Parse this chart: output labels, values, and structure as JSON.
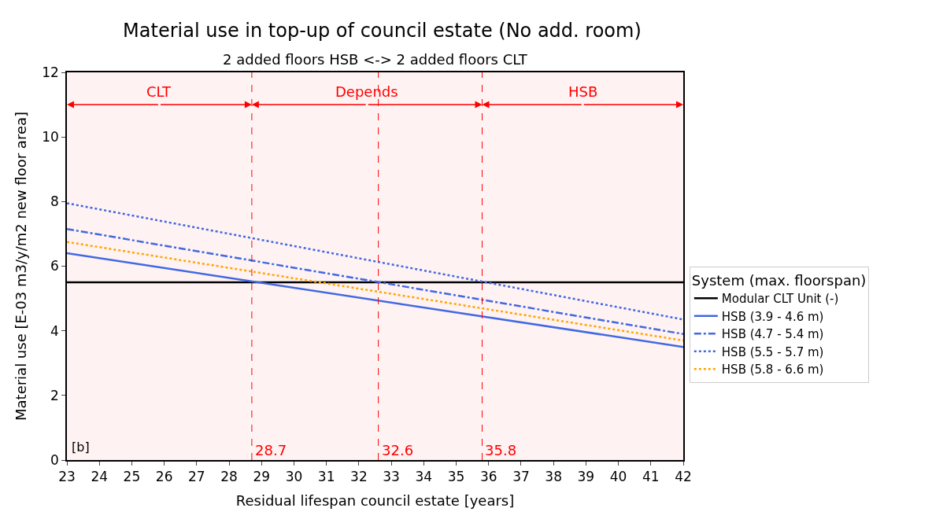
{
  "chart_data": {
    "type": "line",
    "title": "Material use in top-up of council estate (No add. room)",
    "subtitle": "2 added floors HSB <-> 2 added floors CLT",
    "xlabel": "Residual lifespan council estate [years]",
    "ylabel": "Material use [E-03 m3/y/m2 new floor area]",
    "legend_title": "System (max. floorspan)",
    "x": [
      23,
      42
    ],
    "series": [
      {
        "name": "Modular CLT Unit (-)",
        "color": "#000000",
        "values": [
          5.5,
          5.5
        ],
        "line_style": "solid"
      },
      {
        "name": "HSB (3.9 - 4.6 m)",
        "color": "#4169e1",
        "values": [
          6.4,
          3.5
        ],
        "line_style": "solid"
      },
      {
        "name": "HSB (4.7 - 5.4 m)",
        "color": "#4169e1",
        "values": [
          7.15,
          3.9
        ],
        "line_style": "dashdot"
      },
      {
        "name": "HSB (5.5 - 5.7 m)",
        "color": "#4169e1",
        "values": [
          7.95,
          4.35
        ],
        "line_style": "dotted"
      },
      {
        "name": "HSB (5.8 - 6.6 m)",
        "color": "#ffa500",
        "values": [
          6.75,
          3.7
        ],
        "line_style": "dotted"
      }
    ],
    "ref_lines": [
      {
        "axis": "x",
        "value": 28.7,
        "label": "28.7",
        "color": "#ff0000",
        "line_style": "dashed"
      },
      {
        "axis": "x",
        "value": 32.6,
        "label": "32.6",
        "color": "#ff0000",
        "line_style": "dashed"
      },
      {
        "axis": "x",
        "value": 35.8,
        "label": "35.8",
        "color": "#ff0000",
        "line_style": "dashed"
      }
    ],
    "annotations": [
      "[b]"
    ],
    "bands": [
      {
        "axis": "x",
        "from": 23,
        "to": 28.7,
        "label": "CLT",
        "color": "#ff0000"
      },
      {
        "axis": "x",
        "from": 28.7,
        "to": 35.8,
        "label": "Depends",
        "color": "#ff0000"
      },
      {
        "axis": "x",
        "from": 35.8,
        "to": 42,
        "label": "HSB",
        "color": "#ff0000"
      }
    ],
    "xlim": [
      23,
      42
    ],
    "xticks": [
      23,
      24,
      25,
      26,
      27,
      28,
      29,
      30,
      31,
      32,
      33,
      34,
      35,
      36,
      37,
      38,
      39,
      40,
      41,
      42
    ],
    "ylim": [
      0,
      12
    ],
    "yticks": [
      0,
      2,
      4,
      6,
      8,
      10,
      12
    ],
    "grid": false,
    "legend": "right",
    "marker": "none"
  }
}
